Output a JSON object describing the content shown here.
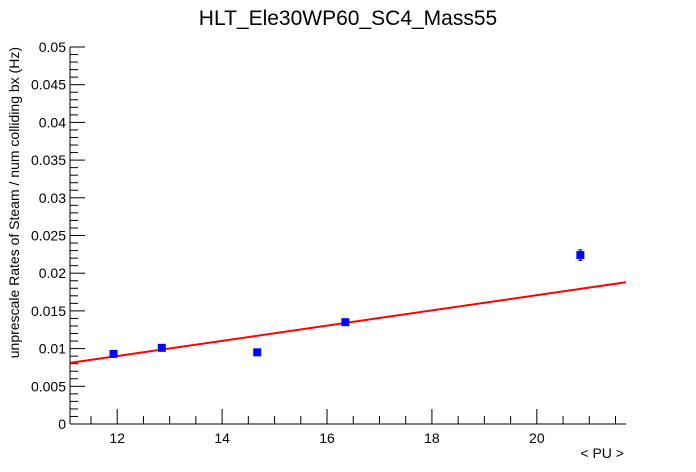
{
  "chart_data": {
    "type": "scatter",
    "title": "HLT_Ele30WP60_SC4_Mass55",
    "xlabel": "< PU >",
    "ylabel": "unprescale Rates of Steam / num colliding bx (Hz)",
    "xlim": [
      11.1,
      21.7
    ],
    "ylim": [
      0,
      0.05
    ],
    "x_ticks": [
      12,
      14,
      16,
      18,
      20
    ],
    "x_tick_labels": [
      "12",
      "14",
      "16",
      "18",
      "20"
    ],
    "y_ticks": [
      0,
      0.005,
      0.01,
      0.015,
      0.02,
      0.025,
      0.03,
      0.035,
      0.04,
      0.045,
      0.05
    ],
    "y_tick_labels": [
      "0",
      "0.005",
      "0.01",
      "0.015",
      "0.02",
      "0.025",
      "0.03",
      "0.035",
      "0.04",
      "0.045",
      "0.05"
    ],
    "grid": false,
    "series": [
      {
        "marker": "square",
        "color": "#0000ff",
        "points": [
          {
            "x": 11.93,
            "y": 0.0093,
            "err": 0.0002
          },
          {
            "x": 12.85,
            "y": 0.0101,
            "err": 0.0002
          },
          {
            "x": 14.67,
            "y": 0.0095,
            "err": 0.0002
          },
          {
            "x": 16.35,
            "y": 0.0135,
            "err": 0.0002
          },
          {
            "x": 20.83,
            "y": 0.0224,
            "err": 0.0007
          }
        ]
      }
    ],
    "fit": {
      "type": "line",
      "color": "#ff0000",
      "x": [
        11.1,
        21.7
      ],
      "y": [
        0.0081,
        0.0188
      ]
    }
  }
}
